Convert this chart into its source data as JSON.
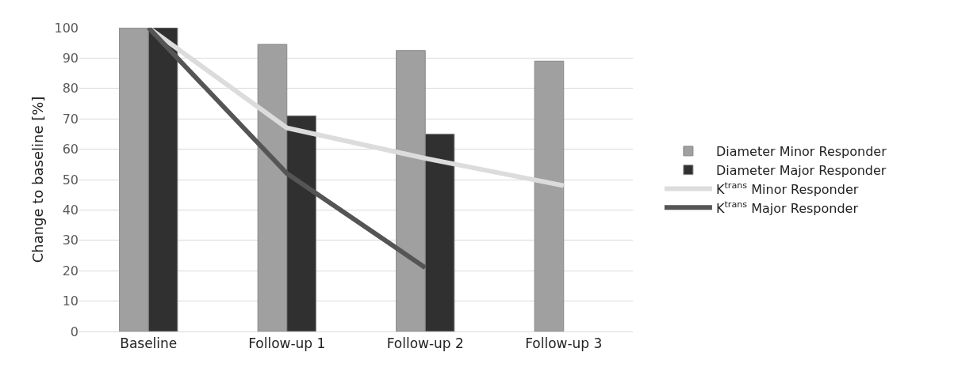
{
  "chart_data": {
    "type": "bar",
    "ylabel": "Change to baseline [%]",
    "categories": [
      "Baseline",
      "Follow-up 1",
      "Follow-up 2",
      "Follow-up 3"
    ],
    "series": [
      {
        "name": "Diameter Minor Responder",
        "color": "#a0a0a0",
        "values": [
          100,
          94.5,
          92.5,
          89
        ]
      },
      {
        "name": "Diameter Major Responder",
        "color": "#303030",
        "values": [
          100,
          71,
          65,
          null
        ]
      },
      {
        "name": "K$^{trans}$ Minor Responder",
        "type": "line",
        "color": "#dcdcdc",
        "values": [
          100,
          67,
          57,
          48
        ]
      },
      {
        "name": "K$^{trans}$ Major Responder",
        "type": "line",
        "color": "#555555",
        "values": [
          100,
          52,
          21,
          null
        ]
      }
    ],
    "ylim": [
      0,
      100
    ],
    "yticks": [
      0,
      10,
      20,
      30,
      40,
      50,
      60,
      70,
      80,
      90,
      100
    ],
    "grid": "y",
    "legend": "right",
    "marker": "none"
  }
}
